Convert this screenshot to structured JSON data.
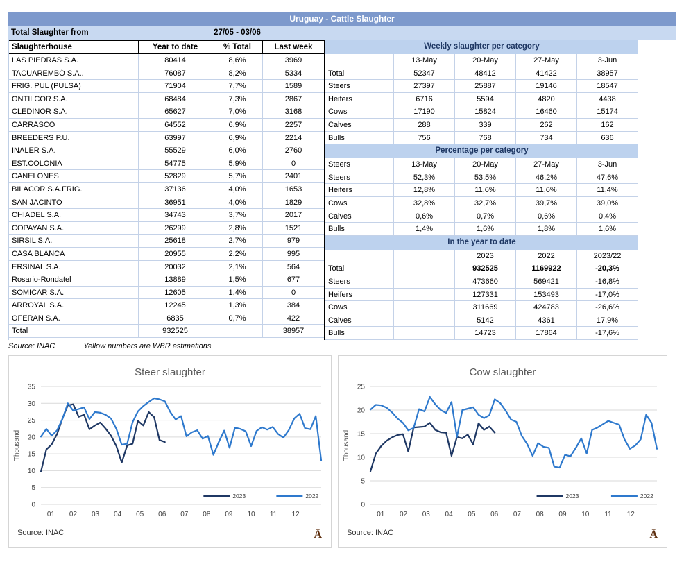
{
  "report": {
    "title": "Uruguay - Cattle Slaughter",
    "period_label": "Total Slaughter from",
    "period_value": "27/05 - 03/06"
  },
  "left_table": {
    "headers": [
      "Slaughterhouse",
      "Year to date",
      "% Total",
      "Last week"
    ],
    "rows": [
      [
        "LAS PIEDRAS S.A.",
        "80414",
        "8,6%",
        "3969"
      ],
      [
        "TACUAREMBÓ S.A..",
        "76087",
        "8,2%",
        "5334"
      ],
      [
        "FRIG. PUL (PULSA)",
        "71904",
        "7,7%",
        "1589"
      ],
      [
        "ONTILCOR S.A.",
        "68484",
        "7,3%",
        "2867"
      ],
      [
        "CLEDINOR S.A.",
        "65627",
        "7,0%",
        "3168"
      ],
      [
        "CARRASCO",
        "64552",
        "6,9%",
        "2257"
      ],
      [
        "BREEDERS P.U.",
        "63997",
        "6,9%",
        "2214"
      ],
      [
        "INALER S.A.",
        "55529",
        "6,0%",
        "2760"
      ],
      [
        "EST.COLONIA",
        "54775",
        "5,9%",
        "0"
      ],
      [
        "CANELONES",
        "52829",
        "5,7%",
        "2401"
      ],
      [
        "BILACOR S.A.FRIG.",
        "37136",
        "4,0%",
        "1653"
      ],
      [
        "SAN JACINTO",
        "36951",
        "4,0%",
        "1829"
      ],
      [
        "CHIADEL S.A.",
        "34743",
        "3,7%",
        "2017"
      ],
      [
        "COPAYAN S.A.",
        "26299",
        "2,8%",
        "1521"
      ],
      [
        "SIRSIL S.A.",
        "25618",
        "2,7%",
        "979"
      ],
      [
        "CASA BLANCA",
        "20955",
        "2,2%",
        "995"
      ],
      [
        "ERSINAL S.A.",
        "20032",
        "2,1%",
        "564"
      ],
      [
        "Rosario-Rondatel",
        "13889",
        "1,5%",
        "677"
      ],
      [
        "SOMICAR S.A.",
        "12605",
        "1,4%",
        "0"
      ],
      [
        "ARROYAL S.A.",
        "12245",
        "1,3%",
        "384"
      ],
      [
        "OFERAN S.A.",
        "6835",
        "0,7%",
        "422"
      ],
      [
        "Total",
        "932525",
        "",
        "38957"
      ]
    ],
    "source": "Source: INAC",
    "note": "Yellow numbers are WBR estimations"
  },
  "right_table": {
    "weekly": {
      "title": "Weekly slaughter per category",
      "col_headers": [
        "",
        "13-May",
        "20-May",
        "27-May",
        "3-Jun"
      ],
      "rows": [
        [
          "Total",
          "52347",
          "48412",
          "41422",
          "38957"
        ],
        [
          "Steers",
          "27397",
          "25887",
          "19146",
          "18547"
        ],
        [
          "Heifers",
          "6716",
          "5594",
          "4820",
          "4438"
        ],
        [
          "Cows",
          "17190",
          "15824",
          "16460",
          "15174"
        ],
        [
          "Calves",
          "288",
          "339",
          "262",
          "162"
        ],
        [
          "Bulls",
          "756",
          "768",
          "734",
          "636"
        ]
      ]
    },
    "percentage": {
      "title": "Percentage per category",
      "col_headers": [
        "Steers",
        "13-May",
        "20-May",
        "27-May",
        "3-Jun"
      ],
      "rows": [
        [
          "Steers",
          "52,3%",
          "53,5%",
          "46,2%",
          "47,6%"
        ],
        [
          "Heifers",
          "12,8%",
          "11,6%",
          "11,6%",
          "11,4%"
        ],
        [
          "Cows",
          "32,8%",
          "32,7%",
          "39,7%",
          "39,0%"
        ],
        [
          "Calves",
          "0,6%",
          "0,7%",
          "0,6%",
          "0,4%"
        ],
        [
          "Bulls",
          "1,4%",
          "1,6%",
          "1,8%",
          "1,6%"
        ]
      ]
    },
    "ytd": {
      "title": "In the year to date",
      "col_headers": [
        "",
        "",
        "2023",
        "2022",
        "2023/22"
      ],
      "rows": [
        [
          "Total",
          "",
          "932525",
          "1169922",
          "-20,3%"
        ],
        [
          "Steers",
          "",
          "473660",
          "569421",
          "-16,8%"
        ],
        [
          "Heifers",
          "",
          "127331",
          "153493",
          "-17,0%"
        ],
        [
          "Cows",
          "",
          "311669",
          "424783",
          "-26,6%"
        ],
        [
          "Calves",
          "",
          "5142",
          "4361",
          "17,9%"
        ],
        [
          "Bulls",
          "",
          "14723",
          "17864",
          "-17,6%"
        ]
      ],
      "bold_first_row": true
    }
  },
  "colors": {
    "banner_bg": "#7D99CC",
    "period_bg": "#C8D9F1",
    "band_bg": "#BDD2EE",
    "band_text": "#1F3864",
    "series_2023": "#1F3864",
    "series_2022": "#2E79CD",
    "gridline": "#D9D9D9",
    "chart_text": "#595959",
    "tick_text": "#404040",
    "logo_brown": "#5D2E0E"
  },
  "chart_data": [
    {
      "type": "line",
      "title": "Steer slaughter",
      "ylabel": "Thousand",
      "ylim": [
        0,
        35
      ],
      "yticks": [
        0,
        5,
        10,
        15,
        20,
        25,
        30,
        35
      ],
      "xticks": [
        "01",
        "02",
        "03",
        "04",
        "05",
        "06",
        "07",
        "08",
        "09",
        "10",
        "11",
        "12"
      ],
      "grid": true,
      "legend_position": "bottom-right-inside",
      "source": "Source: INAC",
      "series": [
        {
          "name": "2023",
          "color": "#1F3864",
          "values": [
            9.7,
            16.3,
            17.8,
            20.9,
            25.5,
            29.4,
            29.7,
            26.0,
            26.6,
            22.3,
            23.4,
            24.3,
            22.5,
            20.4,
            17.3,
            12.4,
            17.5,
            18.0,
            24.8,
            23.4,
            27.4,
            25.9,
            19.1,
            18.5
          ]
        },
        {
          "name": "2022",
          "color": "#2E79CD",
          "values": [
            20.1,
            22.4,
            20.4,
            22.0,
            25.4,
            30.0,
            27.8,
            28.3,
            28.8,
            25.3,
            27.4,
            27.2,
            26.6,
            25.5,
            22.4,
            17.7,
            18.0,
            24.4,
            27.6,
            29.2,
            30.4,
            31.5,
            31.2,
            30.6,
            27.4,
            25.2,
            26.2,
            20.2,
            21.4,
            22.0,
            19.5,
            20.3,
            14.7,
            18.5,
            21.9,
            16.8,
            22.8,
            22.4,
            21.7,
            17.3,
            21.8,
            22.9,
            22.2,
            23.0,
            20.9,
            19.8,
            22.1,
            25.5,
            26.9,
            22.6,
            22.3,
            26.2,
            13.1
          ]
        }
      ]
    },
    {
      "type": "line",
      "title": "Cow slaughter",
      "ylabel": "Thousand",
      "ylim": [
        0,
        25
      ],
      "yticks": [
        0,
        5,
        10,
        15,
        20,
        25
      ],
      "xticks": [
        "01",
        "02",
        "03",
        "04",
        "05",
        "06",
        "07",
        "08",
        "09",
        "10",
        "11",
        "12"
      ],
      "grid": true,
      "legend_position": "bottom-right-inside",
      "source": "Source: INAC",
      "series": [
        {
          "name": "2023",
          "color": "#1F3864",
          "values": [
            7.0,
            10.8,
            12.4,
            13.5,
            14.2,
            14.7,
            14.9,
            11.2,
            16.3,
            16.4,
            16.5,
            17.3,
            15.8,
            15.3,
            15.2,
            10.3,
            14.3,
            14.0,
            14.8,
            12.7,
            17.2,
            15.8,
            16.5,
            15.2
          ]
        },
        {
          "name": "2022",
          "color": "#2E79CD",
          "values": [
            20.1,
            21.1,
            21.0,
            20.5,
            19.5,
            18.2,
            17.3,
            15.7,
            16.2,
            20.2,
            19.7,
            22.8,
            21.2,
            20.0,
            19.4,
            21.7,
            14.3,
            20.0,
            20.3,
            20.6,
            19.0,
            18.3,
            18.9,
            22.3,
            21.5,
            19.9,
            18.0,
            17.5,
            14.5,
            12.8,
            10.3,
            13.0,
            12.2,
            12.0,
            8.0,
            7.8,
            10.5,
            10.2,
            12.0,
            14.0,
            10.8,
            15.8,
            16.3,
            17.0,
            17.7,
            17.3,
            16.9,
            13.8,
            11.8,
            12.5,
            13.8,
            19.0,
            17.3,
            11.8
          ]
        }
      ]
    }
  ]
}
